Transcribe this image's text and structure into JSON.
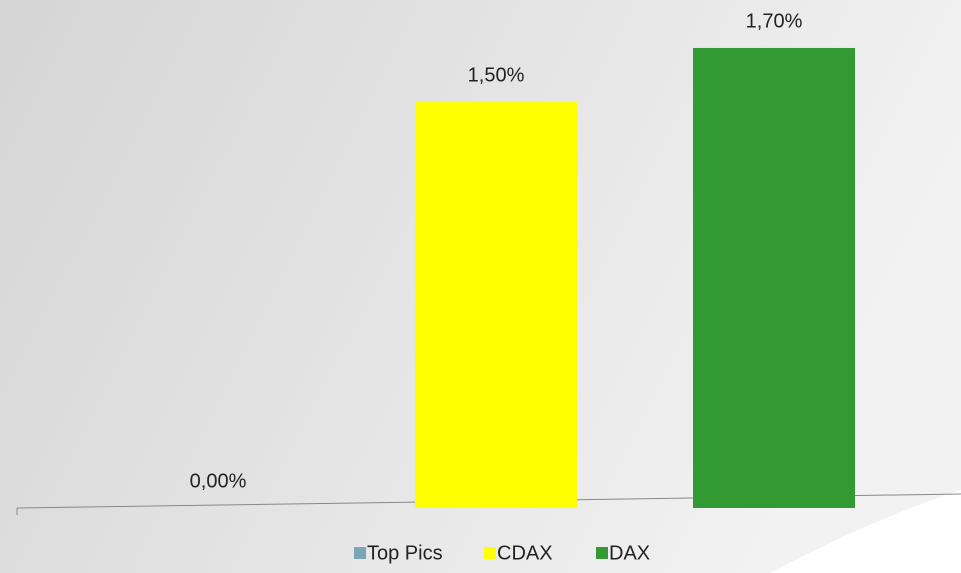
{
  "chart_data": {
    "type": "bar",
    "series": [
      {
        "name": "Top Pics",
        "color": "#7aa6b8",
        "values": [
          0
        ],
        "value_labels": [
          "0,00%"
        ]
      },
      {
        "name": "CDAX",
        "color": "#ffff00",
        "values": [
          1.5
        ],
        "value_labels": [
          "1,50%"
        ]
      },
      {
        "name": "DAX",
        "color": "#339933",
        "values": [
          1.7
        ],
        "value_labels": [
          "1,70%"
        ]
      }
    ],
    "legend": "bottom"
  }
}
